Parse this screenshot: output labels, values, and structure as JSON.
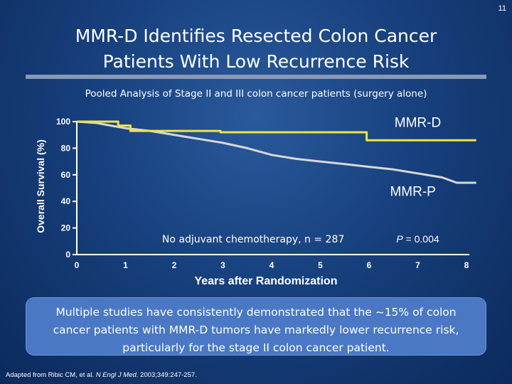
{
  "slide_number": "11",
  "title_line1": "MMR-D Identifies Resected Colon Cancer",
  "title_line2": "Patients With Low Recurrence Risk",
  "subtitle": "Pooled Analysis of Stage II and III colon cancer patients (surgery alone)",
  "callout": "Multiple studies have consistently demonstrated that the ~15% of colon cancer patients with MMR-D tumors have markedly lower recurrence risk, particularly for the stage II colon cancer patient.",
  "source": {
    "prefix": "Adapted from Ribic CM, et al. ",
    "journal": "N Engl J Med.",
    "suffix": " 2003;349:247-257."
  },
  "colors": {
    "mmr_d": "#f0e442",
    "mmr_p": "#d8d8d8"
  },
  "chart_data": {
    "type": "line",
    "xlabel": "Years after Randomization",
    "ylabel": "Overall Survival (%)",
    "xlim": [
      0,
      8
    ],
    "ylim": [
      0,
      100
    ],
    "xticks": [
      0,
      1,
      2,
      3,
      4,
      5,
      6,
      7,
      8
    ],
    "yticks": [
      0,
      20,
      40,
      60,
      80,
      100
    ],
    "series": [
      {
        "name": "MMR-D",
        "step": true,
        "points": [
          [
            0,
            100
          ],
          [
            0.85,
            100
          ],
          [
            0.85,
            97
          ],
          [
            1.1,
            97
          ],
          [
            1.1,
            93
          ],
          [
            2.95,
            93
          ],
          [
            2.95,
            92
          ],
          [
            5.95,
            92
          ],
          [
            5.95,
            86
          ],
          [
            8.2,
            86
          ]
        ]
      },
      {
        "name": "MMR-P",
        "step": false,
        "points": [
          [
            0,
            100
          ],
          [
            0.4,
            99
          ],
          [
            0.7,
            97
          ],
          [
            1.0,
            95
          ],
          [
            1.5,
            93
          ],
          [
            2.0,
            90
          ],
          [
            2.5,
            87
          ],
          [
            3.0,
            84
          ],
          [
            3.5,
            80
          ],
          [
            4.0,
            75
          ],
          [
            4.5,
            72
          ],
          [
            5.0,
            70
          ],
          [
            5.5,
            68
          ],
          [
            6.0,
            66
          ],
          [
            6.5,
            64
          ],
          [
            7.0,
            61
          ],
          [
            7.5,
            58
          ],
          [
            7.8,
            54
          ],
          [
            8.2,
            54
          ]
        ]
      }
    ],
    "annotations": [
      {
        "text": "MMR-D",
        "x": 7.0,
        "y": 96
      },
      {
        "text": "MMR-P",
        "x": 6.9,
        "y": 44
      },
      {
        "text": "No adjuvant chemotherapy, n = 287",
        "x": 1.75,
        "y": 9
      },
      {
        "text": "P = 0.004",
        "x": 7.0,
        "y": 9
      }
    ]
  }
}
